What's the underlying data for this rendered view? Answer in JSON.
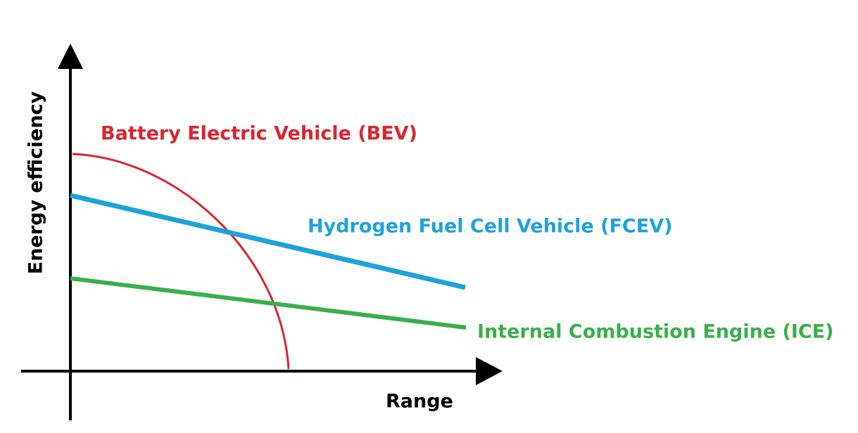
{
  "axes": {
    "x_label": "Range",
    "y_label": "Energy efficiency"
  },
  "curves": [
    {
      "label": "Battery Electric Vehicle (BEV)"
    },
    {
      "label": "Hydrogen Fuel Cell Vehicle (FCEV)"
    },
    {
      "label": "Internal Combustion Engine (ICE)"
    }
  ]
}
